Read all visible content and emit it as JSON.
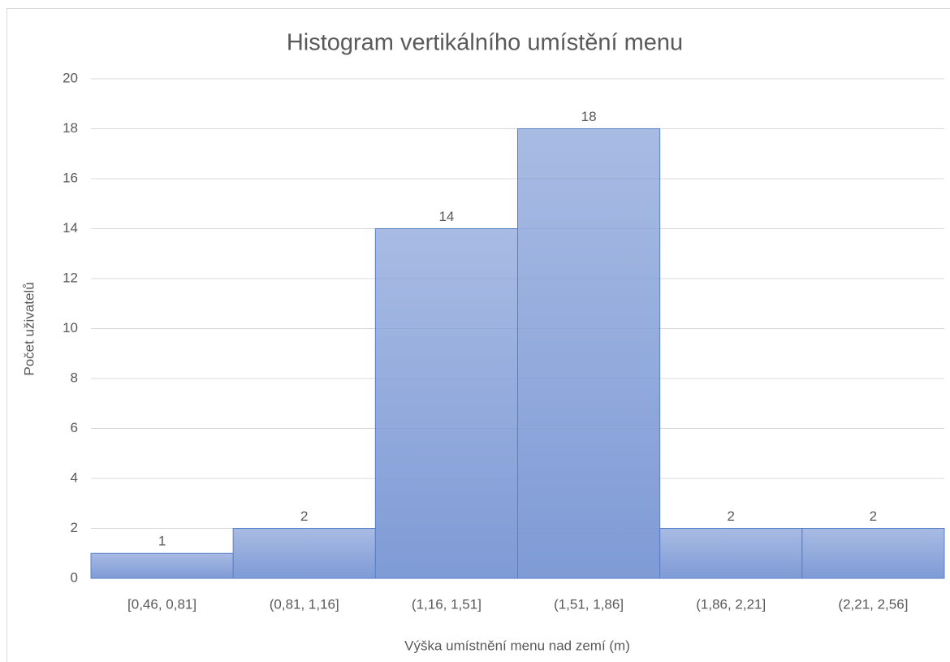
{
  "chart_data": {
    "type": "bar",
    "title": "Histogram vertikálního umístění menu",
    "x_label": "Výška umístnění menu nad zemí (m)",
    "y_label": "Počet uživatelů",
    "categories": [
      "[0,46, 0,81]",
      "(0,81, 1,16]",
      "(1,16, 1,51]",
      "(1,51, 1,86]",
      "(1,86, 2,21]",
      "(2,21, 2,56]"
    ],
    "values": [
      1,
      2,
      14,
      18,
      2,
      2
    ],
    "color": "#7f9bd6",
    "ylim": [
      0,
      20
    ],
    "yticks": [
      0,
      2,
      4,
      6,
      8,
      10,
      12,
      14,
      16,
      18,
      20
    ],
    "grid": true
  }
}
